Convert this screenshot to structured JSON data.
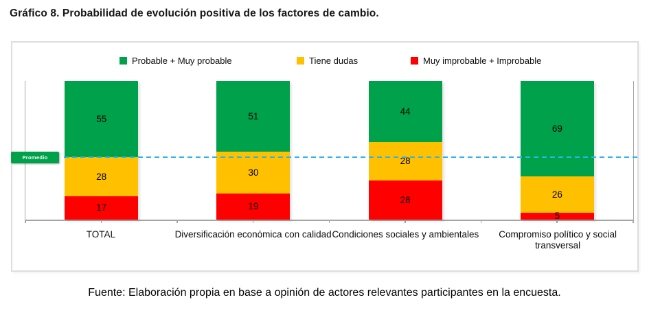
{
  "page": {
    "title": "Gráfico 8. Probabilidad de evolución positiva de los factores de cambio.",
    "source_note": "Fuente: Elaboración propia en base a opinión de actores relevantes participantes en la encuesta."
  },
  "chart_data": {
    "type": "bar",
    "subtype": "100%-stacked-column",
    "title": "Gráfico 8. Probabilidad de evolución positiva de los factores de cambio.",
    "categories": [
      "TOTAL",
      "Diversificación económica con calidad",
      "Condiciones sociales y ambientales",
      "Compromiso político y social transversal"
    ],
    "series": [
      {
        "name": "Probable + Muy probable",
        "color": "#00A14B",
        "values": [
          55,
          51,
          44,
          69
        ]
      },
      {
        "name": "Tiene dudas",
        "color": "#FFC000",
        "values": [
          28,
          30,
          28,
          26
        ]
      },
      {
        "name": "Muy improbable + Improbable",
        "color": "#FF0000",
        "values": [
          17,
          19,
          28,
          5
        ]
      }
    ],
    "stack_order": "first-series-on-top",
    "ylim": [
      0,
      100
    ],
    "grid": false,
    "legend_position": "top",
    "axis_color": "#A6A6A6",
    "data_labels": true,
    "average_line": {
      "label": "Promedio",
      "value_from_top_pct": 54.75,
      "line_color": "#2FB4E9",
      "box_color": "#00A14B"
    }
  }
}
